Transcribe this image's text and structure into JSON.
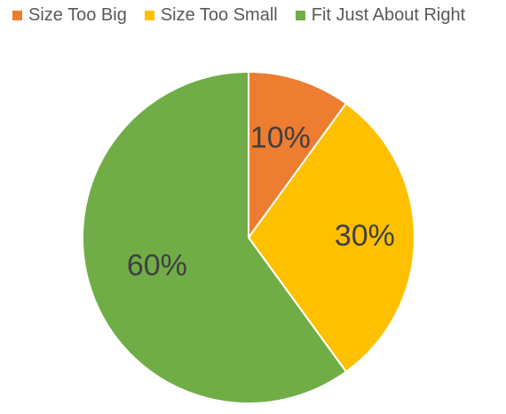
{
  "chart_data": {
    "type": "pie",
    "title": "",
    "categories": [
      "Size Too Big",
      "Size Too Small",
      "Fit Just About Right"
    ],
    "values": [
      10,
      30,
      60
    ],
    "data_labels": [
      "10%",
      "30%",
      "60%"
    ],
    "colors": [
      "#ED7D31",
      "#FFC000",
      "#70AD47"
    ],
    "legend": "top"
  }
}
